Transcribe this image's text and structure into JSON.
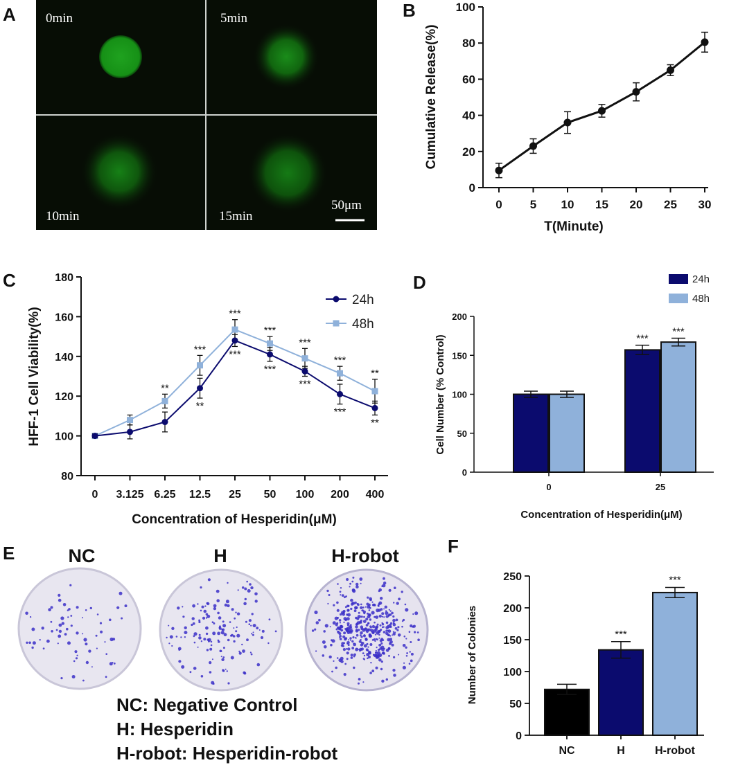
{
  "panels": {
    "a": {
      "label": "A",
      "timepoints": [
        "0min",
        "5min",
        "10min",
        "15min"
      ],
      "scale_bar": "50μm"
    },
    "e": {
      "label": "E",
      "groups": [
        "NC",
        "H",
        "H-robot"
      ],
      "key_lines": [
        "NC: Negative Control",
        "H: Hesperidin",
        "H-robot: Hesperidin-robot"
      ]
    }
  },
  "colors": {
    "series_24h": "#0b0b6e",
    "series_48h": "#8fb1da",
    "nc_bar": "#000000",
    "microscope_bg": "#070d05",
    "fluor": "#1e9a1e",
    "colony": "#3b2fc8",
    "dish": "#eceaf2"
  },
  "chart_data": [
    {
      "panel": "B",
      "type": "line",
      "title": "",
      "xlabel": "T(Minute)",
      "ylabel": "Cumulative Release(%)",
      "x": [
        0,
        5,
        10,
        15,
        20,
        25,
        30
      ],
      "x_ticks": [
        "0",
        "5",
        "10",
        "15",
        "20",
        "25",
        "30"
      ],
      "y_ticks": [
        "0",
        "20",
        "40",
        "60",
        "80",
        "100"
      ],
      "ylim": [
        0,
        100
      ],
      "series": [
        {
          "name": "release",
          "values": [
            9.5,
            23,
            36,
            42.5,
            53,
            65,
            80.5
          ],
          "errors": [
            4,
            4,
            6,
            3.5,
            5,
            3,
            5.5
          ]
        }
      ]
    },
    {
      "panel": "C",
      "type": "line",
      "title": "",
      "xlabel": "Concentration of Hesperidin(μM)",
      "ylabel": "HFF-1 Cell Viability(%)",
      "categories": [
        "0",
        "3.125",
        "6.25",
        "12.5",
        "25",
        "50",
        "100",
        "200",
        "400"
      ],
      "y_ticks": [
        "80",
        "100",
        "120",
        "140",
        "160",
        "180"
      ],
      "ylim": [
        80,
        180
      ],
      "legend_position": "top-right",
      "series": [
        {
          "name": "24h",
          "values": [
            100,
            102,
            107,
            124,
            148,
            141,
            132.5,
            121,
            114
          ],
          "errors": [
            1,
            3.5,
            5,
            5,
            3,
            3.5,
            2.5,
            5,
            3.5
          ],
          "sig": [
            "",
            "",
            "",
            "**",
            "***",
            "***",
            "***",
            "***",
            "**"
          ]
        },
        {
          "name": "48h",
          "values": [
            100,
            108,
            117.5,
            135.5,
            153.5,
            146.5,
            139,
            131.5,
            122.5
          ],
          "errors": [
            1,
            2.5,
            3.5,
            5,
            5,
            3.5,
            5,
            3.5,
            6
          ],
          "sig": [
            "",
            "",
            "**",
            "***",
            "***",
            "***",
            "***",
            "***",
            "**"
          ]
        }
      ]
    },
    {
      "panel": "D",
      "type": "bar",
      "title": "",
      "xlabel": "Concentration of Hesperidin(μM)",
      "ylabel": "Cell Number (% Control)",
      "categories": [
        "0",
        "25"
      ],
      "y_ticks": [
        "0",
        "50",
        "100",
        "150",
        "200"
      ],
      "ylim": [
        0,
        200
      ],
      "legend_position": "top-right",
      "series": [
        {
          "name": "24h",
          "values": [
            100,
            157
          ],
          "errors": [
            4,
            6
          ],
          "sig": [
            "",
            "***"
          ]
        },
        {
          "name": "48h",
          "values": [
            100,
            167
          ],
          "errors": [
            4,
            5
          ],
          "sig": [
            "",
            "***"
          ]
        }
      ]
    },
    {
      "panel": "F",
      "type": "bar",
      "title": "",
      "xlabel": "",
      "ylabel": "Number of Colonies",
      "categories": [
        "NC",
        "H",
        "H-robot"
      ],
      "y_ticks": [
        "0",
        "50",
        "100",
        "150",
        "200",
        "250"
      ],
      "ylim": [
        0,
        250
      ],
      "series": [
        {
          "name": "colonies",
          "values": [
            72,
            134,
            224
          ],
          "errors": [
            8,
            13,
            8
          ],
          "sig": [
            "",
            "***",
            "***"
          ]
        }
      ]
    }
  ],
  "panel_labels": [
    "B",
    "C",
    "D",
    "F"
  ]
}
